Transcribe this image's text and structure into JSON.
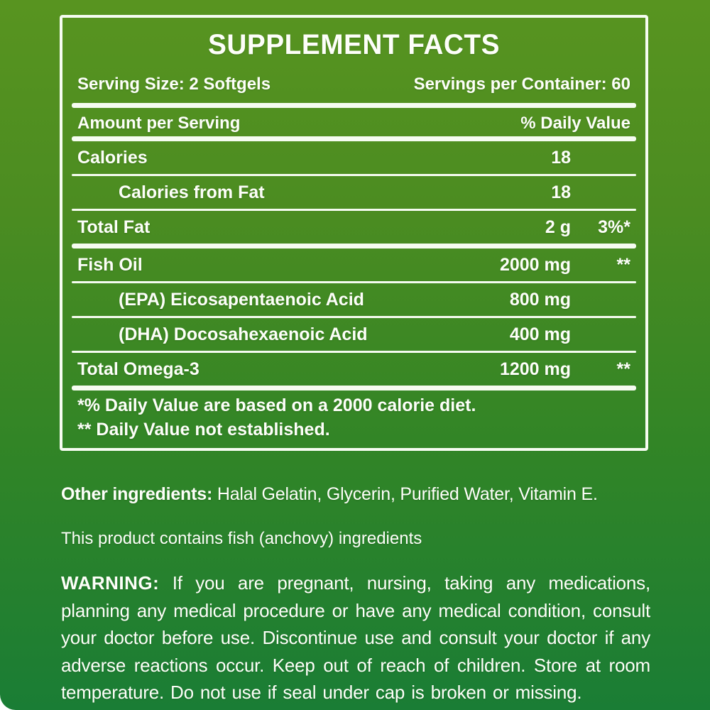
{
  "colors": {
    "bg_top": "#589420",
    "bg_bottom": "#1a7d35",
    "text": "#fdfef9",
    "rule": "#f6fcf1"
  },
  "panel": {
    "title": "SUPPLEMENT FACTS",
    "serving_size": "Serving Size: 2 Softgels",
    "servings_per_container": "Servings per Container: 60",
    "col_amount_header": "Amount per Serving",
    "col_dv_header": "% Daily Value",
    "rows": [
      {
        "name": "Calories",
        "amount": "18",
        "dv": "",
        "indent": false,
        "divider_after": "thin"
      },
      {
        "name": "Calories from Fat",
        "amount": "18",
        "dv": "",
        "indent": true,
        "divider_after": "thin"
      },
      {
        "name": "Total Fat",
        "amount": "2 g",
        "dv": "3%*",
        "indent": false,
        "divider_after": "thick"
      },
      {
        "name": "Fish Oil",
        "amount": "2000 mg",
        "dv": "**",
        "indent": false,
        "divider_after": "thin"
      },
      {
        "name": "(EPA) Eicosapentaenoic Acid",
        "amount": "800 mg",
        "dv": "",
        "indent": true,
        "divider_after": "thin"
      },
      {
        "name": "(DHA) Docosahexaenoic Acid",
        "amount": "400 mg",
        "dv": "",
        "indent": true,
        "divider_after": "thin"
      },
      {
        "name": "Total Omega-3",
        "amount": "1200 mg",
        "dv": "**",
        "indent": false,
        "divider_after": "thick"
      }
    ],
    "footnotes": [
      "*% Daily Value are based on a 2000 calorie diet.",
      "** Daily Value not established."
    ]
  },
  "other_ingredients": {
    "label": "Other ingredients:",
    "text": " Halal Gelatin, Glycerin, Purified Water, Vitamin E."
  },
  "allergen_note": "This product contains fish (anchovy) ingredients",
  "warning": {
    "label": "WARNING:",
    "text": " If you are pregnant, nursing, taking any medications, planning any medical procedure or have any medical condition, consult your doctor before use. Discontinue use and consult your doctor if any adverse reactions occur. Keep out of reach of children. Store at room temperature. Do not use if seal under cap is broken or missing."
  }
}
